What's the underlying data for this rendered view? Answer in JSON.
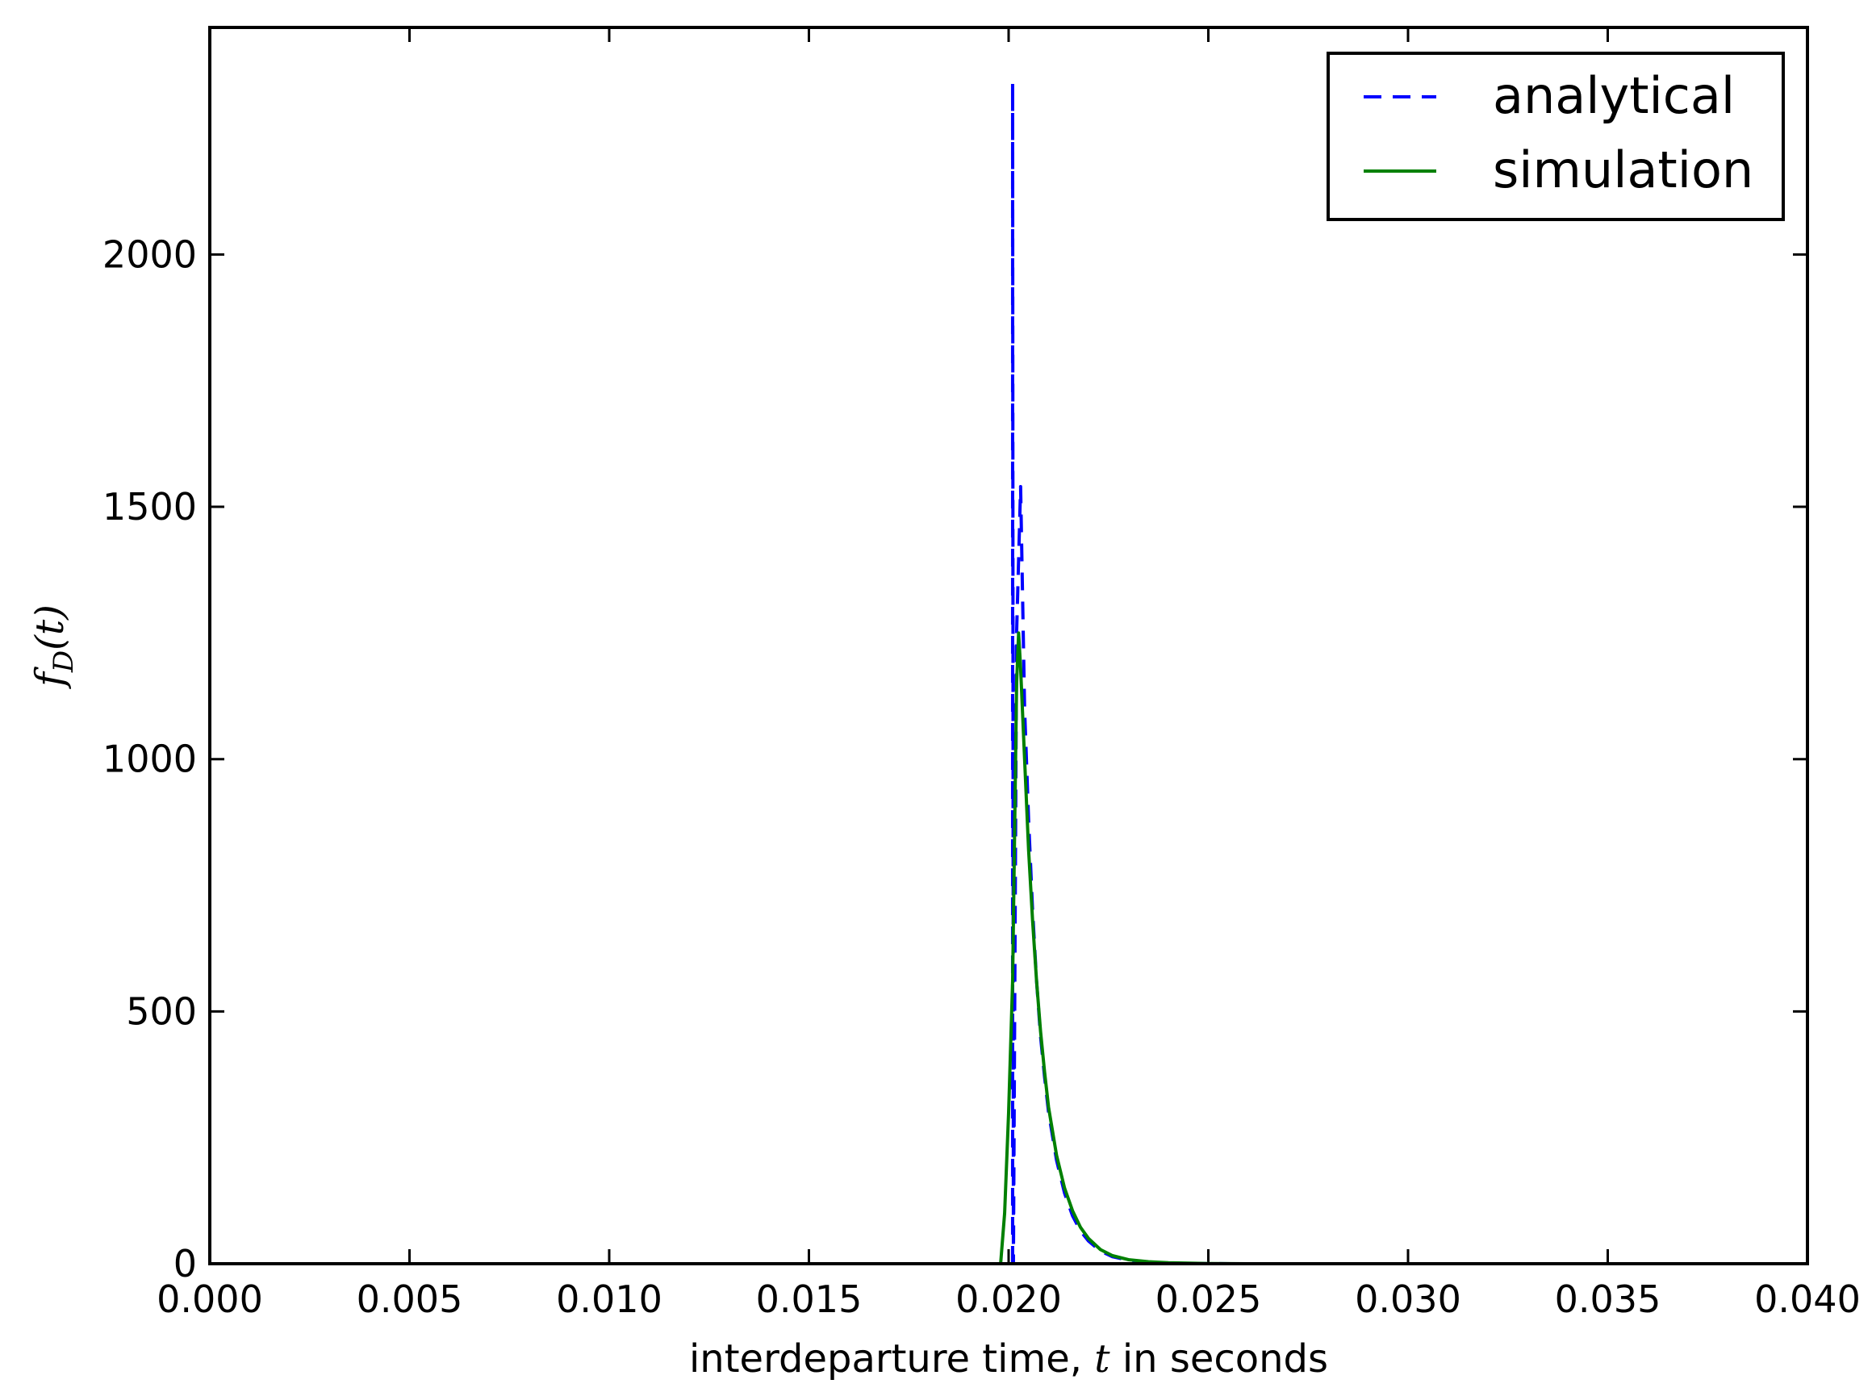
{
  "chart_data": {
    "type": "line",
    "title": "",
    "xlabel": {
      "text_before": "interdeparture time, ",
      "math": "t",
      "text_after": " in seconds"
    },
    "ylabel": {
      "math_f": "f",
      "math_sub": "D",
      "rest": "(t)"
    },
    "xlim": [
      0.0,
      0.04
    ],
    "ylim": [
      0,
      2450
    ],
    "x_ticks": [
      0.0,
      0.005,
      0.01,
      0.015,
      0.02,
      0.025,
      0.03,
      0.035,
      0.04
    ],
    "x_tick_labels": [
      "0.000",
      "0.005",
      "0.010",
      "0.015",
      "0.020",
      "0.025",
      "0.030",
      "0.035",
      "0.040"
    ],
    "y_ticks": [
      0,
      500,
      1000,
      1500,
      2000
    ],
    "y_tick_labels": [
      "0",
      "500",
      "1000",
      "1500",
      "2000"
    ],
    "grid": false,
    "legend": {
      "placement": "top-right"
    },
    "series": [
      {
        "name": "analytical",
        "style": "dashed",
        "color": "#0000ff",
        "points": [
          [
            0.0201,
            0
          ],
          [
            0.0201,
            2340
          ],
          [
            0.02012,
            0
          ],
          [
            0.0202,
            1250
          ],
          [
            0.0203,
            1540
          ],
          [
            0.0204,
            1100
          ],
          [
            0.0205,
            880
          ],
          [
            0.0206,
            700
          ],
          [
            0.0207,
            560
          ],
          [
            0.0208,
            450
          ],
          [
            0.0209,
            370
          ],
          [
            0.021,
            300
          ],
          [
            0.0212,
            205
          ],
          [
            0.0214,
            140
          ],
          [
            0.0216,
            95
          ],
          [
            0.0218,
            65
          ],
          [
            0.022,
            45
          ],
          [
            0.0223,
            25
          ],
          [
            0.0226,
            14
          ],
          [
            0.023,
            7
          ],
          [
            0.0235,
            3
          ],
          [
            0.024,
            1
          ],
          [
            0.025,
            0.2
          ],
          [
            0.026,
            0
          ]
        ]
      },
      {
        "name": "simulation",
        "style": "solid",
        "color": "#008000",
        "points": [
          [
            0.0198,
            0
          ],
          [
            0.0199,
            100
          ],
          [
            0.02,
            300
          ],
          [
            0.0201,
            560
          ],
          [
            0.0202,
            1150
          ],
          [
            0.02025,
            1250
          ],
          [
            0.0203,
            1180
          ],
          [
            0.0204,
            1000
          ],
          [
            0.0205,
            820
          ],
          [
            0.0206,
            680
          ],
          [
            0.0207,
            560
          ],
          [
            0.0208,
            460
          ],
          [
            0.0209,
            380
          ],
          [
            0.021,
            310
          ],
          [
            0.0212,
            215
          ],
          [
            0.0214,
            150
          ],
          [
            0.0216,
            105
          ],
          [
            0.0218,
            72
          ],
          [
            0.022,
            50
          ],
          [
            0.0223,
            28
          ],
          [
            0.0226,
            16
          ],
          [
            0.023,
            8
          ],
          [
            0.0235,
            4
          ],
          [
            0.024,
            2
          ],
          [
            0.025,
            0.5
          ],
          [
            0.026,
            0
          ]
        ]
      }
    ]
  }
}
